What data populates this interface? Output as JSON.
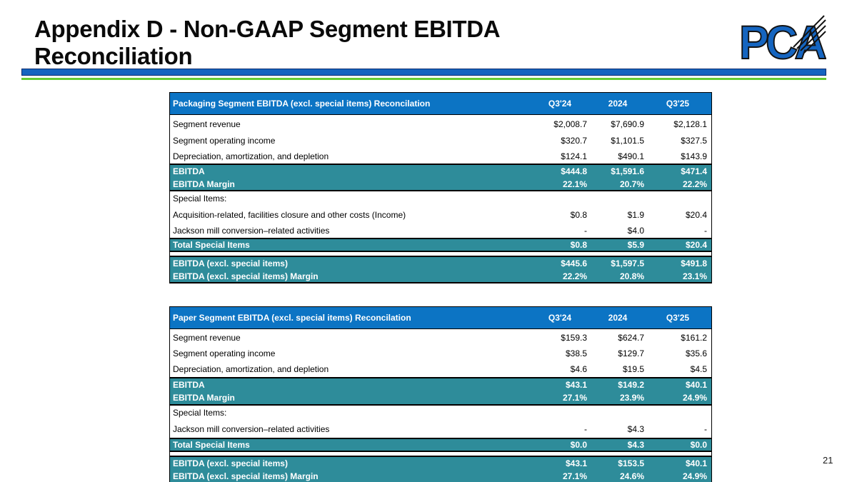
{
  "slide": {
    "title_line1": "Appendix D - Non-GAAP Segment EBITDA",
    "title_line2": "Reconciliation",
    "page_number": "21",
    "logo_text": "PCA"
  },
  "colors": {
    "header_blue": "#0C74C4",
    "teal": "#2E8C9A",
    "divider_blue": "#1565C0",
    "divider_border": "#0A2A6E",
    "divider_green": "#66CC33",
    "logo_blue": "#1565C0"
  },
  "tables": [
    {
      "title": "Packaging Segment EBITDA (excl. special items) Reconcilation",
      "columns": [
        "Q3'24",
        "2024",
        "Q3'25"
      ],
      "rows": [
        {
          "label": "Segment revenue",
          "values": [
            "$2,008.7",
            "$7,690.9",
            "$2,128.1"
          ],
          "style": "plain",
          "h": 25
        },
        {
          "label": "Segment operating income",
          "values": [
            "$320.7",
            "$1,101.5",
            "$327.5"
          ],
          "style": "plain",
          "h": 22
        },
        {
          "label": "Depreciation, amortization, and depletion",
          "values": [
            "$124.1",
            "$490.1",
            "$143.9"
          ],
          "style": "plain",
          "h": 21
        },
        {
          "label": "EBITDA",
          "values": [
            "$444.8",
            "$1,591.6",
            "$471.4"
          ],
          "style": "teal-start",
          "h": 20
        },
        {
          "label": "EBITDA Margin",
          "values": [
            "22.1%",
            "20.7%",
            "22.2%"
          ],
          "style": "teal-end",
          "h": 19
        },
        {
          "label": "Special Items:",
          "values": [
            "",
            "",
            ""
          ],
          "style": "plain",
          "h": 20
        },
        {
          "label": "Acquisition-related, facilities closure and other costs (Income)",
          "values": [
            "$0.8",
            "$1.9",
            "$20.4"
          ],
          "style": "plain",
          "h": 25
        },
        {
          "label": "Jackson mill conversion–related activities",
          "values": [
            "-",
            "$4.0",
            "-"
          ],
          "style": "plain",
          "h": 20
        },
        {
          "label": "Total Special Items",
          "values": [
            "$0.8",
            "$5.9",
            "$20.4"
          ],
          "style": "total",
          "h": 20
        },
        {
          "label": "",
          "values": [
            "",
            "",
            ""
          ],
          "style": "gap",
          "h": 5
        },
        {
          "label": "EBITDA (excl. special items)",
          "values": [
            "$445.6",
            "$1,597.5",
            "$491.8"
          ],
          "style": "teal-start",
          "h": 20
        },
        {
          "label": "EBITDA (excl. special items) Margin",
          "values": [
            "22.2%",
            "20.8%",
            "23.1%"
          ],
          "style": "teal-end",
          "h": 19
        }
      ]
    },
    {
      "title": "Paper Segment EBITDA (excl. special items) Reconcilation",
      "columns": [
        "Q3'24",
        "2024",
        "Q3'25"
      ],
      "rows": [
        {
          "label": "Segment revenue",
          "values": [
            "$159.3",
            "$624.7",
            "$161.2"
          ],
          "style": "plain",
          "h": 23
        },
        {
          "label": "Segment operating income",
          "values": [
            "$38.5",
            "$129.7",
            "$35.6"
          ],
          "style": "plain",
          "h": 22
        },
        {
          "label": "Depreciation, amortization, and depletion",
          "values": [
            "$4.6",
            "$19.5",
            "$4.5"
          ],
          "style": "plain",
          "h": 22
        },
        {
          "label": "EBITDA",
          "values": [
            "$43.1",
            "$149.2",
            "$40.1"
          ],
          "style": "teal-start",
          "h": 20
        },
        {
          "label": "EBITDA Margin",
          "values": [
            "27.1%",
            "23.9%",
            "24.9%"
          ],
          "style": "teal-end",
          "h": 20
        },
        {
          "label": "Special Items:",
          "values": [
            "",
            "",
            ""
          ],
          "style": "plain",
          "h": 20
        },
        {
          "label": "Jackson mill conversion–related activities",
          "values": [
            "-",
            "$4.3",
            "-"
          ],
          "style": "plain",
          "h": 25
        },
        {
          "label": "Total Special Items",
          "values": [
            "$0.0",
            "$4.3",
            "$0.0"
          ],
          "style": "total",
          "h": 20
        },
        {
          "label": "",
          "values": [
            "",
            "",
            ""
          ],
          "style": "gap",
          "h": 5
        },
        {
          "label": "EBITDA (excl. special items)",
          "values": [
            "$43.1",
            "$153.5",
            "$40.1"
          ],
          "style": "teal-start",
          "h": 20
        },
        {
          "label": "EBITDA (excl. special items) Margin",
          "values": [
            "27.1%",
            "24.6%",
            "24.9%"
          ],
          "style": "teal-end",
          "h": 19
        }
      ]
    }
  ]
}
